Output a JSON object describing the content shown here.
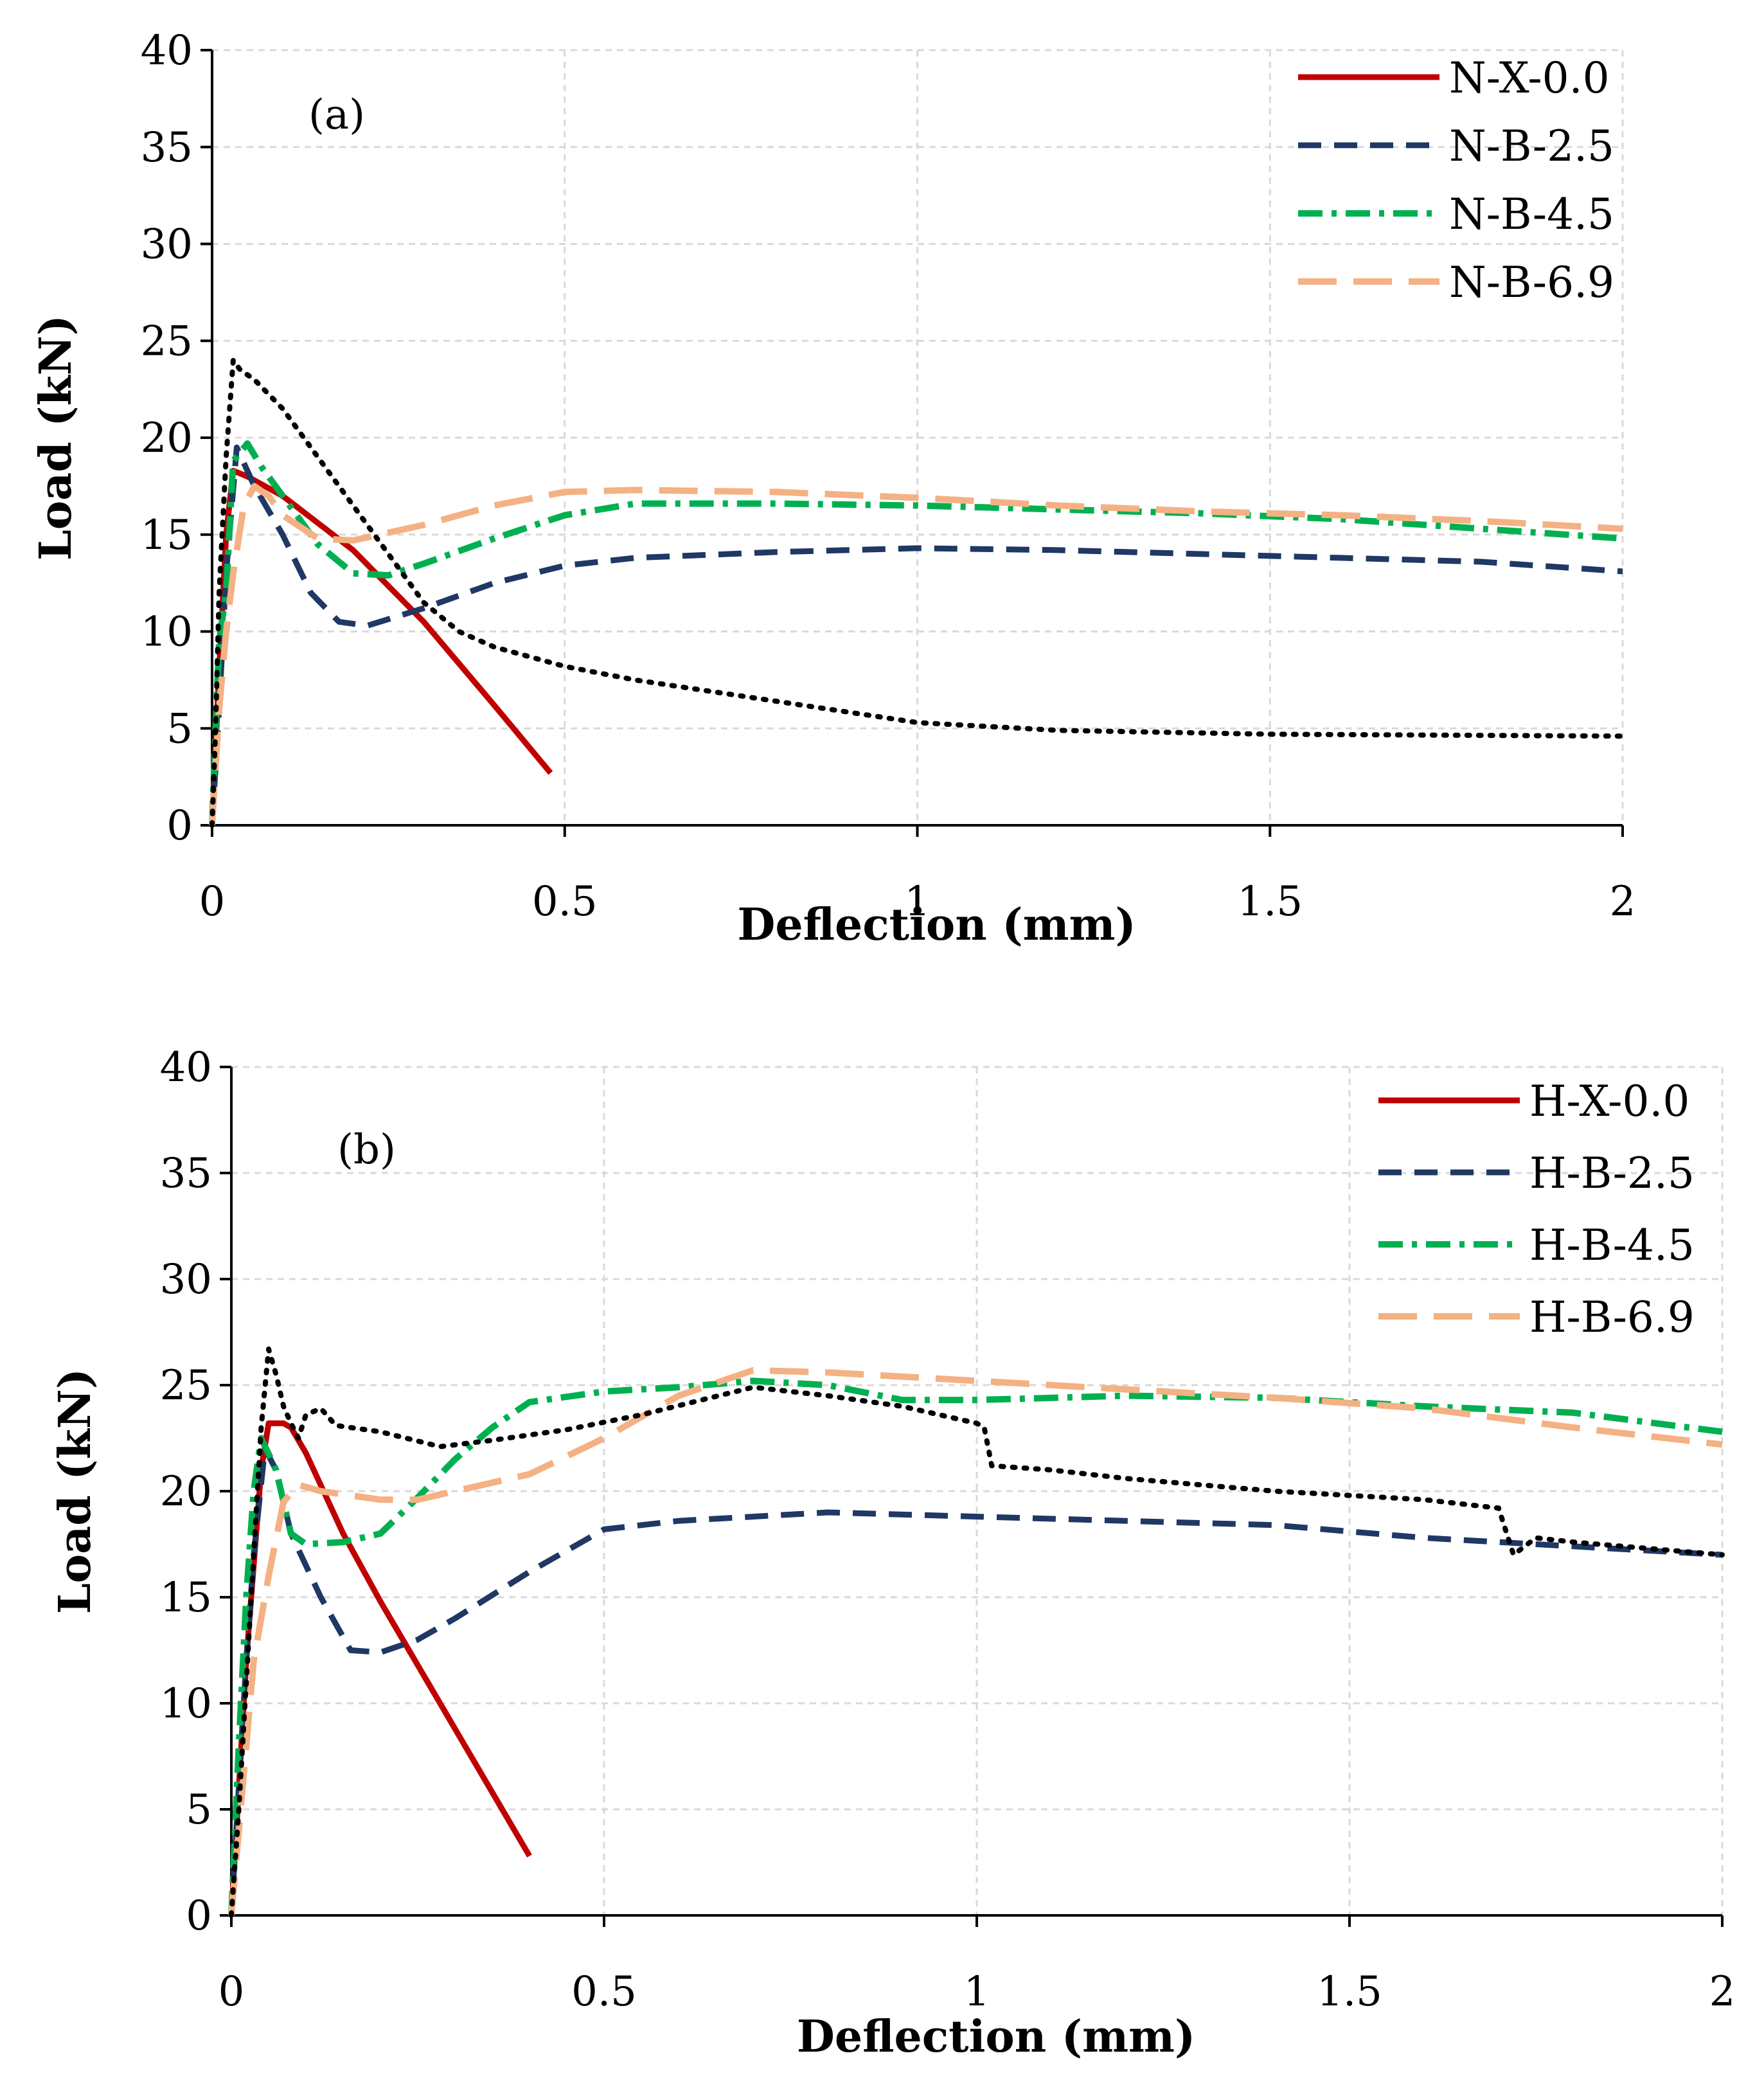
{
  "chart_data": [
    {
      "type": "line",
      "panel": "(a)",
      "xlabel": "Deflection (mm)",
      "ylabel": "Load (kN)",
      "xlim": [
        0,
        2
      ],
      "ylim": [
        0,
        40
      ],
      "xticks": [
        0,
        0.5,
        1,
        1.5,
        2
      ],
      "xtick_labels": [
        "0",
        "0.5",
        "1",
        "1.5",
        "2"
      ],
      "yticks": [
        0,
        5,
        10,
        15,
        20,
        25,
        30,
        35,
        40
      ],
      "ytick_labels": [
        "0",
        "5",
        "10",
        "15",
        "20",
        "25",
        "30",
        "35",
        "40"
      ],
      "grid": true,
      "legend_position": "top-right",
      "series": [
        {
          "name": "N-X-0.0",
          "color": "#c00000",
          "style": "solid",
          "in_legend": true,
          "x": [
            0,
            0.01,
            0.02,
            0.03,
            0.05,
            0.1,
            0.2,
            0.3,
            0.4,
            0.48
          ],
          "y": [
            0,
            8,
            15,
            18.3,
            18,
            17,
            14.2,
            10.5,
            6.2,
            2.7
          ]
        },
        {
          "name": "N-B-2.5",
          "color": "#1f3864",
          "style": "dashed",
          "in_legend": true,
          "x": [
            0,
            0.01,
            0.02,
            0.035,
            0.06,
            0.1,
            0.14,
            0.18,
            0.22,
            0.3,
            0.4,
            0.5,
            0.6,
            0.8,
            1.0,
            1.2,
            1.4,
            1.6,
            1.8,
            2.0
          ],
          "y": [
            0,
            6,
            13,
            19.5,
            17.5,
            15,
            12,
            10.5,
            10.3,
            11.2,
            12.5,
            13.4,
            13.8,
            14.1,
            14.3,
            14.2,
            14.0,
            13.8,
            13.6,
            13.1
          ]
        },
        {
          "name": "N-B-4.5",
          "color": "#00b050",
          "style": "dashdot",
          "in_legend": true,
          "x": [
            0,
            0.005,
            0.01,
            0.02,
            0.03,
            0.05,
            0.07,
            0.1,
            0.15,
            0.2,
            0.25,
            0.3,
            0.4,
            0.5,
            0.6,
            0.8,
            1.0,
            1.2,
            1.4,
            1.6,
            1.8,
            2.0
          ],
          "y": [
            0,
            5,
            9.5,
            12,
            18.8,
            19.7,
            18.5,
            17,
            14.5,
            13,
            12.9,
            13.5,
            14.8,
            16,
            16.6,
            16.6,
            16.5,
            16.3,
            16.1,
            15.8,
            15.3,
            14.8
          ]
        },
        {
          "name": "N-B-6.9",
          "color": "#f4b183",
          "style": "longdash",
          "in_legend": true,
          "x": [
            0,
            0.01,
            0.02,
            0.03,
            0.045,
            0.06,
            0.08,
            0.1,
            0.15,
            0.2,
            0.3,
            0.4,
            0.5,
            0.6,
            0.8,
            1.0,
            1.2,
            1.4,
            1.6,
            1.8,
            2.0
          ],
          "y": [
            0,
            6,
            10,
            13,
            16.5,
            17.5,
            17,
            16,
            14.8,
            14.7,
            15.5,
            16.5,
            17.2,
            17.3,
            17.2,
            16.9,
            16.5,
            16.2,
            16.0,
            15.7,
            15.3
          ]
        },
        {
          "name": "",
          "color": "#000000",
          "style": "dotted",
          "in_legend": false,
          "x": [
            0,
            0.005,
            0.01,
            0.02,
            0.03,
            0.04,
            0.06,
            0.1,
            0.15,
            0.2,
            0.25,
            0.3,
            0.35,
            0.4,
            0.5,
            0.6,
            0.8,
            1.0,
            1.2,
            1.5,
            2.0
          ],
          "y": [
            0,
            5,
            12,
            19,
            24,
            23.5,
            23,
            21.5,
            19,
            16.5,
            14,
            11.5,
            10,
            9.2,
            8.2,
            7.5,
            6.4,
            5.3,
            4.9,
            4.7,
            4.6
          ]
        }
      ],
      "annotations": [
        "(a)"
      ]
    },
    {
      "type": "line",
      "panel": "(b)",
      "xlabel": "Deflection (mm)",
      "ylabel": "Load (kN)",
      "xlim": [
        0,
        2
      ],
      "ylim": [
        0,
        40
      ],
      "xticks": [
        0,
        0.5,
        1,
        1.5,
        2
      ],
      "xtick_labels": [
        "0",
        "0.5",
        "1",
        "1.5",
        "2"
      ],
      "yticks": [
        0,
        5,
        10,
        15,
        20,
        25,
        30,
        35,
        40
      ],
      "ytick_labels": [
        "0",
        "5",
        "10",
        "15",
        "20",
        "25",
        "30",
        "35",
        "40"
      ],
      "grid": true,
      "legend_position": "top-right",
      "series": [
        {
          "name": "H-X-0.0",
          "color": "#c00000",
          "style": "solid",
          "in_legend": true,
          "x": [
            0,
            0.01,
            0.02,
            0.04,
            0.05,
            0.07,
            0.08,
            0.1,
            0.15,
            0.2,
            0.3,
            0.4
          ],
          "y": [
            0,
            6,
            12,
            21,
            23.2,
            23.2,
            23,
            21.8,
            18,
            14.8,
            8.8,
            2.8
          ]
        },
        {
          "name": "H-B-2.5",
          "color": "#1f3864",
          "style": "dashed",
          "in_legend": true,
          "x": [
            0,
            0.01,
            0.02,
            0.03,
            0.045,
            0.06,
            0.08,
            0.12,
            0.16,
            0.2,
            0.25,
            0.3,
            0.4,
            0.5,
            0.6,
            0.8,
            1.0,
            1.2,
            1.4,
            1.6,
            1.8,
            2.0
          ],
          "y": [
            0,
            6,
            12,
            17,
            22,
            21,
            18,
            15,
            12.5,
            12.4,
            13,
            14,
            16.2,
            18.2,
            18.6,
            19,
            18.8,
            18.6,
            18.4,
            17.8,
            17.4,
            17.0
          ]
        },
        {
          "name": "H-B-4.5",
          "color": "#00b050",
          "style": "dashdot",
          "in_legend": true,
          "x": [
            0,
            0.01,
            0.02,
            0.03,
            0.04,
            0.06,
            0.08,
            0.1,
            0.15,
            0.2,
            0.25,
            0.3,
            0.35,
            0.4,
            0.5,
            0.6,
            0.7,
            0.8,
            0.9,
            1.0,
            1.2,
            1.4,
            1.6,
            1.8,
            2.0
          ],
          "y": [
            0,
            8,
            15,
            20,
            22.5,
            21,
            18,
            17.5,
            17.6,
            18,
            19.7,
            21.5,
            23,
            24.2,
            24.7,
            24.9,
            25.2,
            25,
            24.3,
            24.3,
            24.5,
            24.4,
            24,
            23.7,
            22.8
          ]
        },
        {
          "name": "H-B-6.9",
          "color": "#f4b183",
          "style": "longdash",
          "in_legend": true,
          "x": [
            0,
            0.01,
            0.02,
            0.03,
            0.05,
            0.07,
            0.09,
            0.12,
            0.16,
            0.2,
            0.25,
            0.3,
            0.4,
            0.5,
            0.6,
            0.7,
            0.8,
            1.0,
            1.2,
            1.4,
            1.6,
            1.8,
            2.0
          ],
          "y": [
            0,
            4,
            8,
            12,
            16,
            19.5,
            20.3,
            20,
            19.8,
            19.6,
            19.6,
            20,
            20.8,
            22.5,
            24.5,
            25.7,
            25.6,
            25.2,
            24.8,
            24.4,
            23.9,
            23.0,
            22.2
          ]
        },
        {
          "name": "",
          "color": "#000000",
          "style": "dotted",
          "in_legend": false,
          "x": [
            0,
            0.01,
            0.02,
            0.03,
            0.04,
            0.05,
            0.06,
            0.07,
            0.08,
            0.09,
            0.1,
            0.12,
            0.14,
            0.2,
            0.28,
            0.35,
            0.45,
            0.55,
            0.7,
            0.8,
            0.9,
            1.0,
            1.01,
            1.02,
            1.1,
            1.2,
            1.3,
            1.4,
            1.5,
            1.6,
            1.7,
            1.72,
            1.75,
            1.8,
            1.9,
            2.0
          ],
          "y": [
            0,
            5,
            11,
            17,
            23,
            26.7,
            25.5,
            24,
            23.2,
            22.5,
            23.6,
            23.9,
            23.1,
            22.8,
            22.1,
            22.4,
            22.9,
            23.6,
            24.9,
            24.5,
            24,
            23.2,
            23,
            21.2,
            21,
            20.6,
            20.3,
            20.0,
            19.8,
            19.6,
            19.2,
            17,
            17.8,
            17.6,
            17.3,
            17.0
          ]
        }
      ],
      "annotations": [
        "(b)"
      ]
    }
  ]
}
